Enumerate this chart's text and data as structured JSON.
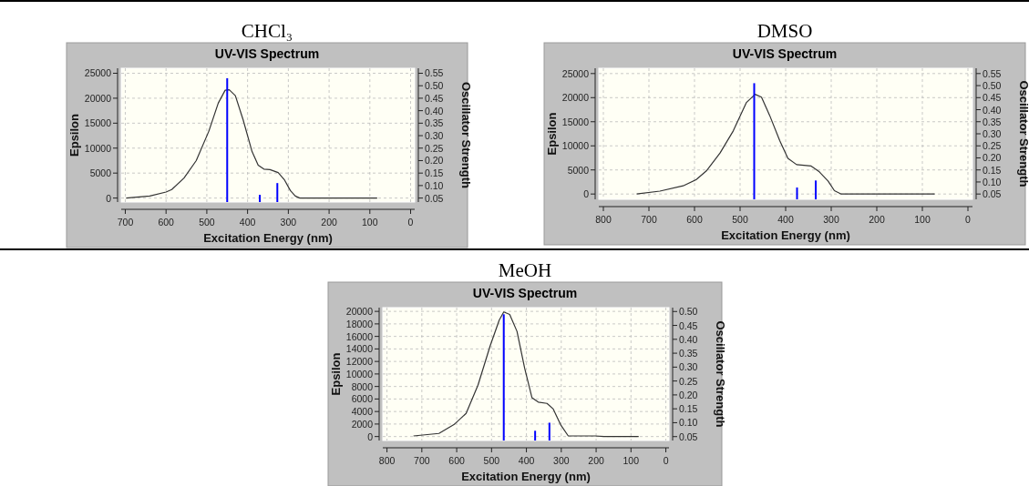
{
  "chart_data": [
    {
      "type": "line",
      "title": "CHCl₃",
      "subtitle": "UV-VIS Spectrum",
      "xlabel": "Excitation Energy (nm)",
      "ylabel": "Epsilon",
      "y2label": "Oscillator Strength",
      "xlim": [
        710,
        -10
      ],
      "xticks": [
        700,
        600,
        500,
        400,
        300,
        200,
        100,
        0
      ],
      "ylim": [
        -800,
        26000
      ],
      "yticks": [
        0,
        5000,
        10000,
        15000,
        20000,
        25000
      ],
      "y2lim": [
        0.034,
        0.57
      ],
      "y2ticks": [
        {
          "value": 0.05,
          "label": "0.05"
        },
        {
          "value": 0.1,
          "label": "0.10"
        },
        {
          "value": 0.15,
          "label": "0.15"
        },
        {
          "value": 0.2,
          "label": "0.20"
        },
        {
          "value": 0.25,
          "label": "0.25"
        },
        {
          "value": 0.3,
          "label": "0.30"
        },
        {
          "value": 0.35,
          "label": "0.35"
        },
        {
          "value": 0.4,
          "label": "0.40"
        },
        {
          "value": 0.45,
          "label": "0.45"
        },
        {
          "value": 0.5,
          "label": "0.50"
        },
        {
          "value": 0.55,
          "label": "0.55"
        }
      ],
      "grid": true,
      "series": [
        {
          "color": "#333333",
          "x": [
            698,
            640,
            600,
            586,
            556,
            526,
            495,
            472,
            455,
            445,
            430,
            411,
            389,
            374,
            360,
            345,
            325,
            310,
            295,
            283,
            272,
            82
          ],
          "values": [
            0,
            400,
            1200,
            1700,
            4000,
            7500,
            13400,
            19000,
            21600,
            21700,
            20500,
            15700,
            9300,
            6600,
            5800,
            5700,
            5100,
            3700,
            1500,
            400,
            0,
            0
          ]
        },
        {
          "type": "bar",
          "axis": "y2",
          "color": "#0000ff",
          "x": [
            450,
            370,
            327
          ],
          "values": [
            0.53,
            0.063,
            0.11
          ]
        }
      ]
    },
    {
      "type": "line",
      "title": "DMSO",
      "subtitle": "UV-VIS Spectrum",
      "xlabel": "Excitation Energy (nm)",
      "ylabel": "Epsilon",
      "y2label": "Oscillator Strength",
      "xlim": [
        810,
        -10
      ],
      "xticks": [
        800,
        700,
        600,
        500,
        400,
        300,
        200,
        100,
        0
      ],
      "ylim": [
        -1100,
        26100
      ],
      "yticks": [
        0,
        5000,
        10000,
        15000,
        20000,
        25000
      ],
      "y2lim": [
        0.028,
        0.572
      ],
      "y2ticks": [
        {
          "value": 0.05,
          "label": "0.05"
        },
        {
          "value": 0.1,
          "label": "0.10"
        },
        {
          "value": 0.15,
          "label": "0.15"
        },
        {
          "value": 0.2,
          "label": "0.20"
        },
        {
          "value": 0.25,
          "label": "0.25"
        },
        {
          "value": 0.3,
          "label": "0.30"
        },
        {
          "value": 0.35,
          "label": "0.35"
        },
        {
          "value": 0.4,
          "label": "0.40"
        },
        {
          "value": 0.45,
          "label": "0.45"
        },
        {
          "value": 0.5,
          "label": "0.50"
        },
        {
          "value": 0.55,
          "label": "0.55"
        }
      ],
      "grid": true,
      "series": [
        {
          "color": "#333333",
          "x": [
            727,
            676,
            625,
            596,
            574,
            544,
            515,
            486,
            467,
            453,
            435,
            413,
            395,
            376,
            344,
            326,
            307,
            293,
            278,
            73
          ],
          "values": [
            0,
            600,
            1700,
            3000,
            4800,
            8500,
            13100,
            19000,
            20700,
            20100,
            16300,
            11100,
            7400,
            6100,
            5800,
            4600,
            2700,
            700,
            0,
            0
          ]
        },
        {
          "type": "bar",
          "axis": "y2",
          "color": "#0000ff",
          "x": [
            469,
            375,
            334
          ],
          "values": [
            0.51,
            0.077,
            0.106
          ]
        }
      ]
    },
    {
      "type": "line",
      "title": "MeOH",
      "subtitle": "UV-VIS Spectrum",
      "xlabel": "Excitation Energy (nm)",
      "ylabel": "Epsilon",
      "y2label": "Oscillator Strength",
      "xlim": [
        812,
        -9
      ],
      "xticks": [
        800,
        700,
        600,
        500,
        400,
        300,
        200,
        100,
        0
      ],
      "ylim": [
        -630,
        20600
      ],
      "yticks": [
        0,
        2000,
        4000,
        6000,
        8000,
        10000,
        12000,
        14000,
        16000,
        18000,
        20000
      ],
      "y2lim": [
        0.036,
        0.514
      ],
      "y2ticks": [
        {
          "value": 0.05,
          "label": "0.05"
        },
        {
          "value": 0.1,
          "label": "0.10"
        },
        {
          "value": 0.15,
          "label": "0.15"
        },
        {
          "value": 0.2,
          "label": "0.20"
        },
        {
          "value": 0.25,
          "label": "0.25"
        },
        {
          "value": 0.3,
          "label": "0.30"
        },
        {
          "value": 0.35,
          "label": "0.35"
        },
        {
          "value": 0.4,
          "label": "0.40"
        },
        {
          "value": 0.45,
          "label": "0.45"
        },
        {
          "value": 0.5,
          "label": "0.50"
        }
      ],
      "grid": true,
      "series": [
        {
          "color": "#333333",
          "x": [
            724,
            651,
            608,
            573,
            539,
            504,
            478,
            465,
            448,
            427,
            405,
            384,
            366,
            341,
            323,
            302,
            280,
            203,
            177,
            78
          ],
          "values": [
            100,
            500,
            1900,
            3700,
            8200,
            14500,
            18600,
            19900,
            19500,
            16800,
            10900,
            6200,
            5500,
            5300,
            4400,
            1900,
            100,
            100,
            0,
            0
          ]
        },
        {
          "type": "bar",
          "axis": "y2",
          "color": "#0000ff",
          "x": [
            465,
            375,
            334
          ],
          "values": [
            0.49,
            0.071,
            0.1
          ]
        }
      ]
    }
  ]
}
